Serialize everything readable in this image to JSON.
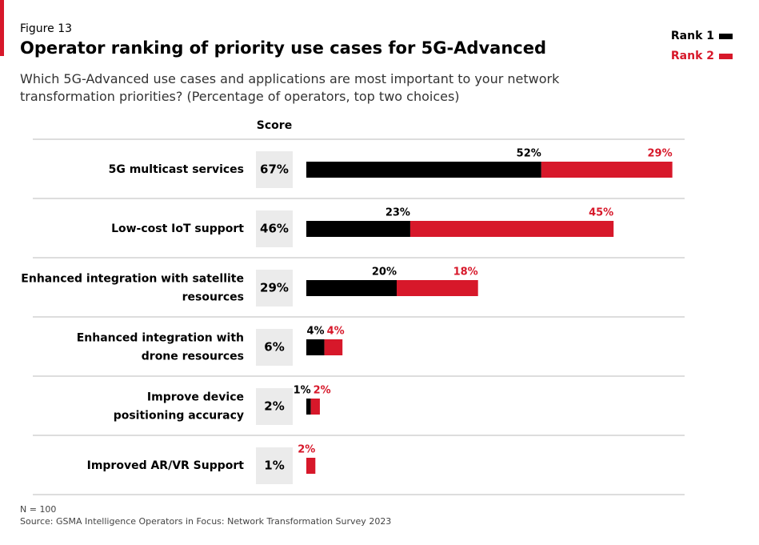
{
  "chart_data": {
    "type": "stacked-bar",
    "figure_label": "Figure 13",
    "title": "Operator ranking of priority use cases for 5G-Advanced",
    "subtitle": "Which 5G-Advanced use cases and applications are most important to your network\ntransformation priorities? (Percentage of operators, top two choices)",
    "score_header": "Score",
    "categories": [
      "5G multicast services",
      "Low-cost IoT support",
      "Enhanced integration with satellite\nresources",
      "Enhanced integration with\ndrone resources",
      "Improve device\npositioning accuracy",
      "Improved AR/VR Support"
    ],
    "scores": {
      "values": [
        67,
        46,
        29,
        6,
        2,
        1
      ],
      "value_labels": [
        "67%",
        "46%",
        "29%",
        "6%",
        "2%",
        "1%"
      ]
    },
    "series": [
      {
        "name": "Rank 1",
        "color": "#000000",
        "values": [
          52,
          23,
          20,
          4,
          1,
          null
        ],
        "value_labels": [
          "52%",
          "23%",
          "20%",
          "4%",
          "1%",
          null
        ]
      },
      {
        "name": "Rank 2",
        "color": "#d7182a",
        "values": [
          29,
          45,
          18,
          4,
          2,
          2
        ],
        "value_labels": [
          "29%",
          "45%",
          "18%",
          "4%",
          "2%",
          "2%"
        ]
      }
    ],
    "legend": "top-right",
    "note": "N = 100",
    "source": "Source: GSMA Intelligence Operators in Focus: Network Transformation Survey 2023"
  }
}
